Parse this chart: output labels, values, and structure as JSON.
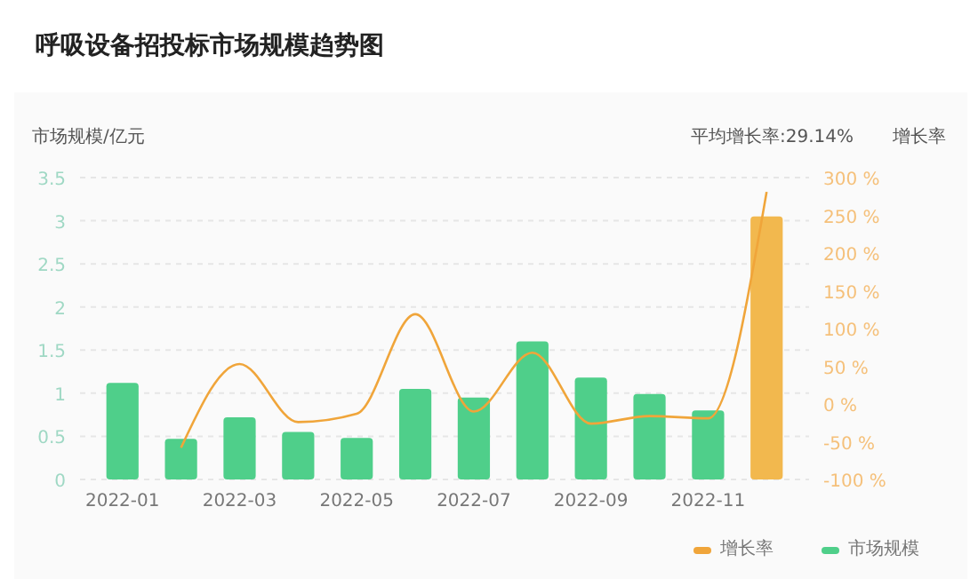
{
  "chart_data": {
    "type": "bar",
    "title": "呼吸设备招投标市场规模趋势图",
    "ylabel": "市场规模/亿元",
    "y2label": "增长率",
    "categories": [
      "2022-01",
      null,
      "2022-03",
      null,
      "2022-05",
      null,
      "2022-07",
      null,
      "2022-09",
      null,
      "2022-11",
      null
    ],
    "series": [
      {
        "name": "市场规模",
        "color": "#4fcf8a",
        "colors": [
          "#4fcf8a",
          "#4fcf8a",
          "#4fcf8a",
          "#4fcf8a",
          "#4fcf8a",
          "#4fcf8a",
          "#4fcf8a",
          "#4fcf8a",
          "#4fcf8a",
          "#4fcf8a",
          "#4fcf8a",
          "#f2b84e"
        ],
        "values": [
          1.12,
          0.47,
          0.72,
          0.55,
          0.48,
          1.05,
          0.95,
          1.6,
          1.18,
          0.99,
          0.8,
          3.05
        ]
      },
      {
        "name": "增长率",
        "type": "line",
        "axis": "y2",
        "color": "#f0a53a",
        "values": [
          null,
          -58,
          53,
          -24,
          -13,
          119,
          -10,
          68,
          -26,
          -16,
          -19,
          281
        ]
      }
    ],
    "ylim": [
      0,
      3.5
    ],
    "yticks": [
      0,
      0.5,
      1,
      1.5,
      2,
      2.5,
      3,
      3.5
    ],
    "y2lim": [
      -100,
      300
    ],
    "y2ticks": [
      {
        "value": -100,
        "label": "-100 %"
      },
      {
        "value": -50,
        "label": "-50 %"
      },
      {
        "value": 0,
        "label": "0 %"
      },
      {
        "value": 50,
        "label": "50 %"
      },
      {
        "value": 100,
        "label": "100 %"
      },
      {
        "value": 150,
        "label": "150 %"
      },
      {
        "value": 200,
        "label": "200 %"
      },
      {
        "value": 250,
        "label": "250 %"
      },
      {
        "value": 300,
        "label": "300 %"
      }
    ],
    "annotations": [
      "平均增长率:29.14%"
    ],
    "grid": "y",
    "legend": "bottom right",
    "marker": "none"
  }
}
